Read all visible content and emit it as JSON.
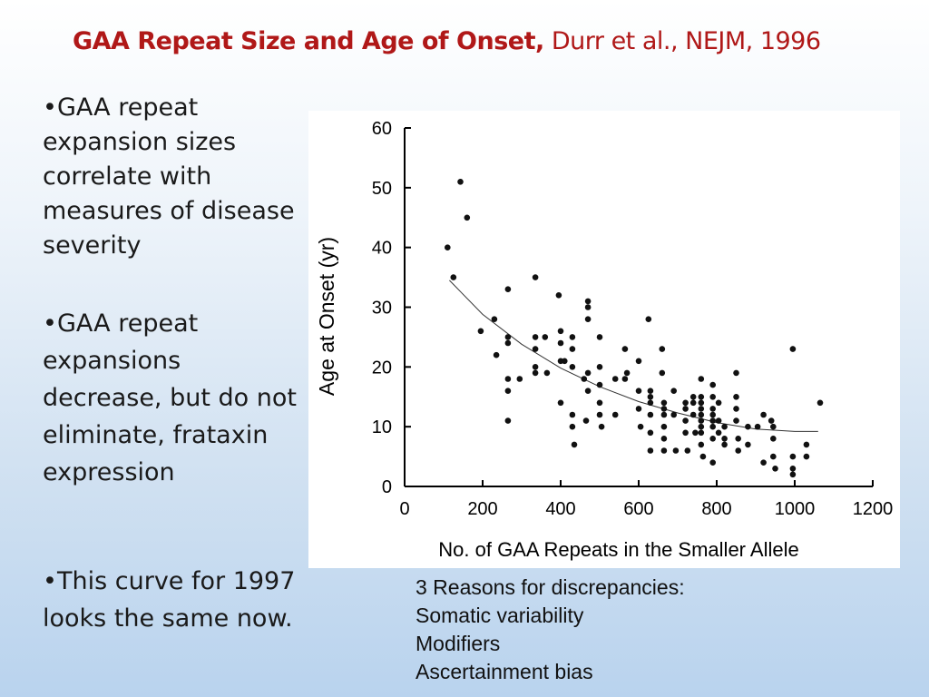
{
  "title": {
    "bold": "GAA Repeat Size and Age of Onset,",
    "normal": " Durr et al., NEJM, 1996"
  },
  "bullets": [
    "GAA repeat expansion sizes correlate with measures of disease severity",
    "GAA repeat expansions decrease, but do not eliminate, frataxin expression",
    "This curve for 1997 looks the same now."
  ],
  "reasons": {
    "heading": "3 Reasons for discrepancies:",
    "items": [
      "Somatic variability",
      "Modifiers",
      "Ascertainment bias"
    ]
  },
  "chart_data": {
    "type": "scatter",
    "xlabel": "No. of GAA Repeats in the Smaller Allele",
    "ylabel": "Age at Onset (yr)",
    "xlim": [
      0,
      1200
    ],
    "ylim": [
      0,
      60
    ],
    "xticks": [
      0,
      200,
      400,
      600,
      800,
      1000,
      1200
    ],
    "yticks": [
      0,
      10,
      20,
      30,
      40,
      50,
      60
    ],
    "grid": false,
    "points": [
      [
        110,
        40
      ],
      [
        125,
        35
      ],
      [
        143,
        51
      ],
      [
        160,
        45
      ],
      [
        195,
        26
      ],
      [
        230,
        28
      ],
      [
        235,
        22
      ],
      [
        265,
        33
      ],
      [
        265,
        25
      ],
      [
        265,
        24
      ],
      [
        265,
        18
      ],
      [
        265,
        16
      ],
      [
        265,
        11
      ],
      [
        295,
        18
      ],
      [
        335,
        35
      ],
      [
        335,
        25
      ],
      [
        335,
        23
      ],
      [
        335,
        20
      ],
      [
        335,
        19
      ],
      [
        360,
        25
      ],
      [
        365,
        19
      ],
      [
        395,
        32
      ],
      [
        400,
        26
      ],
      [
        400,
        24
      ],
      [
        400,
        21
      ],
      [
        400,
        14
      ],
      [
        410,
        21
      ],
      [
        430,
        25
      ],
      [
        430,
        23
      ],
      [
        430,
        20
      ],
      [
        430,
        12
      ],
      [
        430,
        10
      ],
      [
        435,
        7
      ],
      [
        460,
        18
      ],
      [
        465,
        11
      ],
      [
        470,
        31
      ],
      [
        470,
        30
      ],
      [
        470,
        28
      ],
      [
        470,
        19
      ],
      [
        470,
        16
      ],
      [
        500,
        25
      ],
      [
        500,
        20
      ],
      [
        500,
        17
      ],
      [
        500,
        14
      ],
      [
        500,
        12
      ],
      [
        505,
        10
      ],
      [
        540,
        18
      ],
      [
        540,
        12
      ],
      [
        565,
        23
      ],
      [
        565,
        18
      ],
      [
        570,
        19
      ],
      [
        600,
        21
      ],
      [
        600,
        16
      ],
      [
        600,
        13
      ],
      [
        605,
        10
      ],
      [
        625,
        28
      ],
      [
        630,
        16
      ],
      [
        630,
        15
      ],
      [
        630,
        14
      ],
      [
        630,
        12
      ],
      [
        630,
        9
      ],
      [
        630,
        6
      ],
      [
        660,
        23
      ],
      [
        660,
        19
      ],
      [
        665,
        14
      ],
      [
        665,
        13
      ],
      [
        665,
        12
      ],
      [
        665,
        10
      ],
      [
        665,
        8
      ],
      [
        665,
        6
      ],
      [
        690,
        16
      ],
      [
        690,
        12
      ],
      [
        695,
        6
      ],
      [
        720,
        14
      ],
      [
        720,
        13
      ],
      [
        720,
        11
      ],
      [
        720,
        9
      ],
      [
        725,
        6
      ],
      [
        740,
        15
      ],
      [
        740,
        14
      ],
      [
        740,
        12
      ],
      [
        745,
        9
      ],
      [
        760,
        18
      ],
      [
        760,
        15
      ],
      [
        760,
        14
      ],
      [
        760,
        13
      ],
      [
        760,
        12
      ],
      [
        760,
        11
      ],
      [
        760,
        10
      ],
      [
        760,
        9
      ],
      [
        760,
        7
      ],
      [
        765,
        5
      ],
      [
        790,
        17
      ],
      [
        790,
        15
      ],
      [
        790,
        13
      ],
      [
        790,
        12
      ],
      [
        790,
        11
      ],
      [
        790,
        10
      ],
      [
        790,
        8
      ],
      [
        790,
        4
      ],
      [
        805,
        14
      ],
      [
        805,
        11
      ],
      [
        805,
        9
      ],
      [
        820,
        10
      ],
      [
        820,
        8
      ],
      [
        820,
        7
      ],
      [
        850,
        19
      ],
      [
        850,
        15
      ],
      [
        850,
        13
      ],
      [
        850,
        11
      ],
      [
        855,
        8
      ],
      [
        855,
        6
      ],
      [
        880,
        10
      ],
      [
        880,
        7
      ],
      [
        905,
        10
      ],
      [
        920,
        12
      ],
      [
        920,
        4
      ],
      [
        940,
        11
      ],
      [
        945,
        10
      ],
      [
        945,
        8
      ],
      [
        945,
        5
      ],
      [
        950,
        3
      ],
      [
        995,
        23
      ],
      [
        995,
        5
      ],
      [
        995,
        3
      ],
      [
        995,
        2
      ],
      [
        1030,
        7
      ],
      [
        1030,
        5
      ],
      [
        1065,
        14
      ]
    ],
    "fit_curve": [
      [
        115,
        34.5
      ],
      [
        200,
        28.8
      ],
      [
        300,
        23.8
      ],
      [
        400,
        19.8
      ],
      [
        500,
        16.7
      ],
      [
        600,
        14.2
      ],
      [
        700,
        12.3
      ],
      [
        800,
        10.7
      ],
      [
        900,
        9.6
      ],
      [
        1000,
        9.2
      ],
      [
        1060,
        9.2
      ]
    ]
  }
}
